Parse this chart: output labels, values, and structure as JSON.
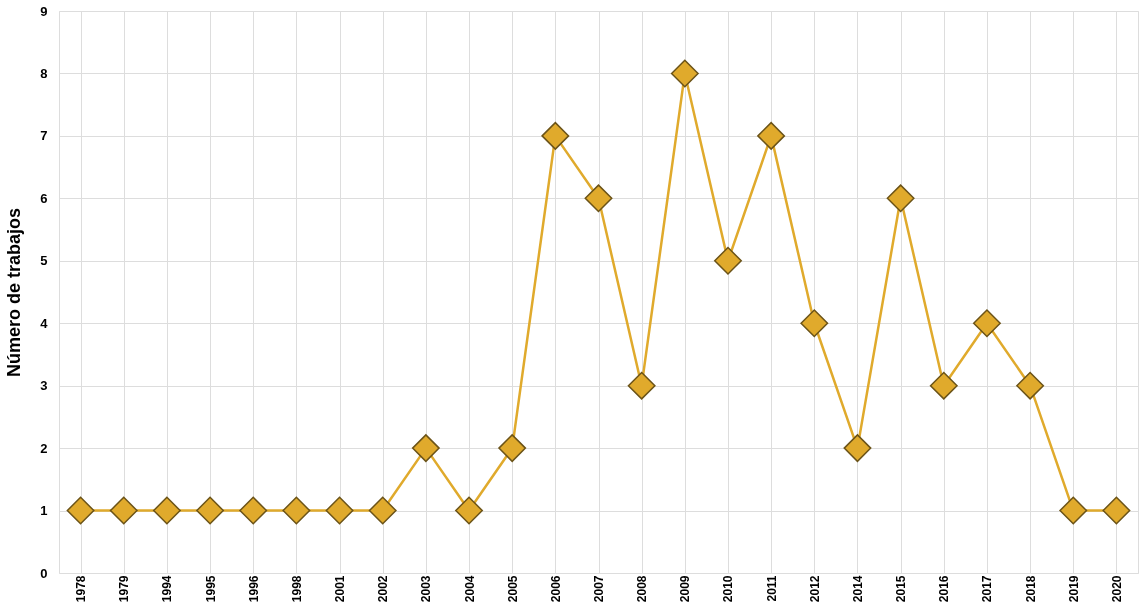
{
  "chart_data": {
    "type": "line",
    "ylabel": "Número de trabajos",
    "categories": [
      "1978",
      "1979",
      "1994",
      "1995",
      "1996",
      "1998",
      "2001",
      "2002",
      "2003",
      "2004",
      "2005",
      "2006",
      "2007",
      "2008",
      "2009",
      "2010",
      "2011",
      "2012",
      "2014",
      "2015",
      "2016",
      "2017",
      "2018",
      "2019",
      "2020"
    ],
    "series": [
      {
        "color": "#e0aa2c",
        "values": [
          1,
          1,
          1,
          1,
          1,
          1,
          1,
          1,
          2,
          1,
          2,
          7,
          6,
          3,
          8,
          5,
          7,
          4,
          2,
          6,
          3,
          4,
          3,
          1,
          1
        ]
      }
    ],
    "ylim": [
      0,
      9
    ],
    "yticks": [
      0,
      1,
      2,
      3,
      4,
      5,
      6,
      7,
      8,
      9
    ],
    "grid": true,
    "marker": "diamond",
    "line_style": "solid"
  }
}
